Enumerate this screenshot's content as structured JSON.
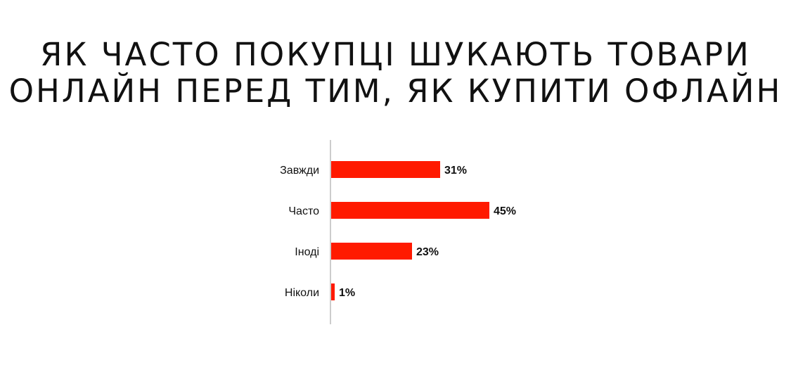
{
  "title": {
    "line1": "ЯК ЧАСТО ПОКУПЦІ ШУКАЮТЬ ТОВАРИ",
    "line2": "ОНЛАЙН ПЕРЕД ТИМ, ЯК КУПИТИ ОФЛАЙН"
  },
  "colors": {
    "bar": "#FF1A00",
    "axis": "#999999",
    "text": "#111111"
  },
  "chart_data": {
    "type": "bar",
    "orientation": "horizontal",
    "title": "ЯК ЧАСТО ПОКУПЦІ ШУКАЮТЬ ТОВАРИ ОНЛАЙН ПЕРЕД ТИМ, ЯК КУПИТИ ОФЛАЙН",
    "categories": [
      "Завжди",
      "Часто",
      "Іноді",
      "Ніколи"
    ],
    "values": [
      31,
      45,
      23,
      1
    ],
    "value_labels": [
      "31%",
      "45%",
      "23%",
      "1%"
    ],
    "unit": "%",
    "xlim": [
      0,
      100
    ],
    "grid": false,
    "legend": "none"
  }
}
